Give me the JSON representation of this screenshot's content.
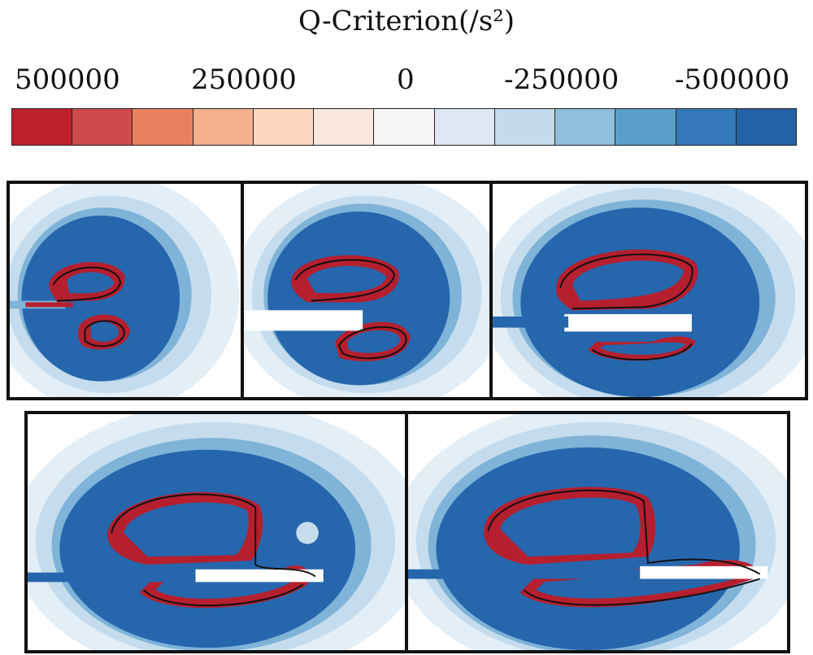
{
  "legend": {
    "title": "Q-Criterion(/s²)",
    "ticks": [
      "500000",
      "250000",
      "0",
      "-250000",
      "-500000"
    ],
    "colors": [
      "#c0202e",
      "#cf4a4a",
      "#e8825e",
      "#f4b08f",
      "#fbd7c0",
      "#f9e6df",
      "#f5f5f5",
      "#dde8f2",
      "#c3dbea",
      "#8fbfdc",
      "#5a9fcc",
      "#3379b9",
      "#2462a8"
    ]
  },
  "palette": {
    "positive": "#b51f2e",
    "negative_core": "#2666ad",
    "negative_mid": "#7fb3d8",
    "negative_light": "#c4dced",
    "negative_faint": "#e3eef6",
    "contour": "#111111",
    "body": "#ffffff"
  }
}
